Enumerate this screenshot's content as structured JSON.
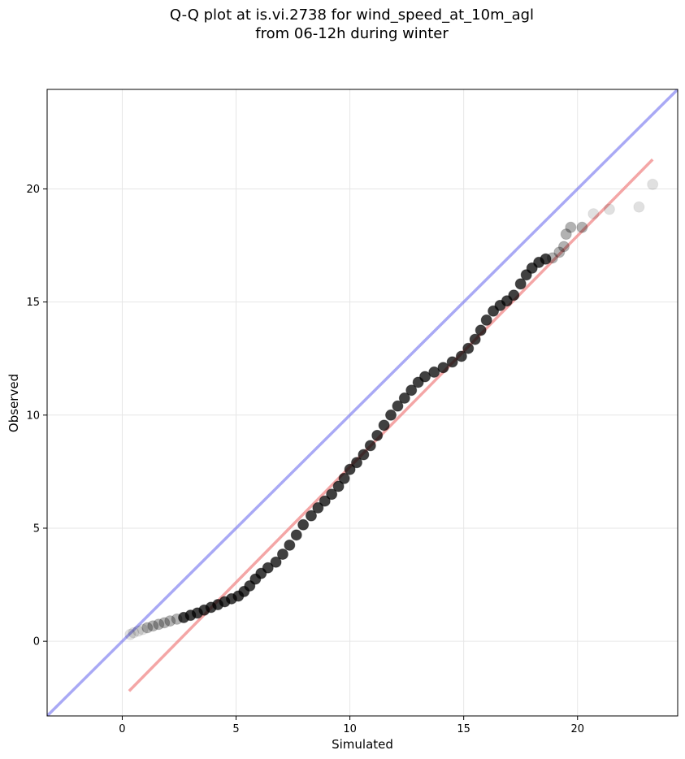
{
  "chart_data": {
    "type": "scatter",
    "title_lines": [
      "Q-Q plot at is.vi.2738 for wind_speed_at_10m_agl",
      "from 06-12h during winter"
    ],
    "xlabel": "Simulated",
    "ylabel": "Observed",
    "xlim": [
      -3.3,
      24.4
    ],
    "ylim": [
      -3.3,
      24.4
    ],
    "xticks": [
      0,
      5,
      10,
      15,
      20
    ],
    "yticks": [
      0,
      5,
      10,
      15,
      20
    ],
    "grid": true,
    "point_color": "#000000",
    "identity_line": {
      "color": "#6f6fef",
      "from": [
        -3.3,
        -3.3
      ],
      "to": [
        24.4,
        24.4
      ]
    },
    "fit_line": {
      "color": "#f08080",
      "from": [
        0.3,
        -2.2
      ],
      "to": [
        23.3,
        21.3
      ]
    },
    "points": [
      [
        0.35,
        0.3
      ],
      [
        0.5,
        0.38
      ],
      [
        0.7,
        0.45
      ],
      [
        0.9,
        0.52
      ],
      [
        1.1,
        0.6
      ],
      [
        1.35,
        0.68
      ],
      [
        1.6,
        0.75
      ],
      [
        1.85,
        0.82
      ],
      [
        2.1,
        0.9
      ],
      [
        2.4,
        0.98
      ],
      [
        2.7,
        1.05
      ],
      [
        3.0,
        1.15
      ],
      [
        3.3,
        1.25
      ],
      [
        3.6,
        1.38
      ],
      [
        3.9,
        1.5
      ],
      [
        4.2,
        1.62
      ],
      [
        4.5,
        1.75
      ],
      [
        4.8,
        1.88
      ],
      [
        5.1,
        2.0
      ],
      [
        5.35,
        2.2
      ],
      [
        5.6,
        2.45
      ],
      [
        5.85,
        2.75
      ],
      [
        6.1,
        3.0
      ],
      [
        6.4,
        3.25
      ],
      [
        6.75,
        3.5
      ],
      [
        7.05,
        3.85
      ],
      [
        7.35,
        4.25
      ],
      [
        7.65,
        4.7
      ],
      [
        7.95,
        5.15
      ],
      [
        8.3,
        5.55
      ],
      [
        8.6,
        5.9
      ],
      [
        8.9,
        6.2
      ],
      [
        9.2,
        6.5
      ],
      [
        9.5,
        6.85
      ],
      [
        9.75,
        7.2
      ],
      [
        10.0,
        7.6
      ],
      [
        10.3,
        7.9
      ],
      [
        10.6,
        8.25
      ],
      [
        10.9,
        8.65
      ],
      [
        11.2,
        9.1
      ],
      [
        11.5,
        9.55
      ],
      [
        11.8,
        10.0
      ],
      [
        12.1,
        10.4
      ],
      [
        12.4,
        10.75
      ],
      [
        12.7,
        11.1
      ],
      [
        13.0,
        11.45
      ],
      [
        13.3,
        11.7
      ],
      [
        13.7,
        11.9
      ],
      [
        14.1,
        12.1
      ],
      [
        14.5,
        12.35
      ],
      [
        14.9,
        12.6
      ],
      [
        15.2,
        12.95
      ],
      [
        15.5,
        13.35
      ],
      [
        15.75,
        13.75
      ],
      [
        16.0,
        14.2
      ],
      [
        16.3,
        14.6
      ],
      [
        16.6,
        14.85
      ],
      [
        16.9,
        15.05
      ],
      [
        17.2,
        15.3
      ],
      [
        17.5,
        15.8
      ],
      [
        17.75,
        16.2
      ],
      [
        18.0,
        16.5
      ],
      [
        18.3,
        16.75
      ],
      [
        18.6,
        16.9
      ],
      [
        18.9,
        16.95
      ],
      [
        19.2,
        17.2
      ],
      [
        19.4,
        17.45
      ],
      [
        19.5,
        18.0
      ],
      [
        19.7,
        18.3
      ],
      [
        20.2,
        18.3
      ],
      [
        20.7,
        18.9
      ],
      [
        21.4,
        19.1
      ],
      [
        22.7,
        19.2
      ],
      [
        23.3,
        20.2
      ]
    ]
  }
}
